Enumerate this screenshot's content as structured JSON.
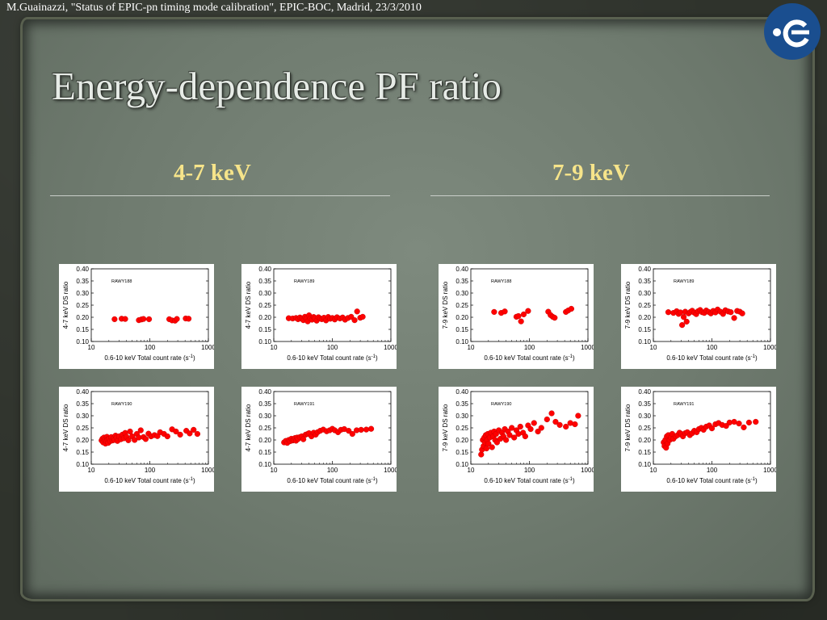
{
  "header": {
    "citation": "M.Guainazzi, \"Status of EPIC-pn timing mode calibration\", EPIC-BOC, Madrid, 23/3/2010",
    "title": "Energy-dependence PF ratio"
  },
  "columns": [
    {
      "label": "4-7 keV"
    },
    {
      "label": "7-9 keV"
    }
  ],
  "logo": {
    "name": "esa-logo",
    "color": "#1a4e8f"
  },
  "colors": {
    "marker": "#ff0000",
    "heading": "#f6e48a",
    "title": "#e6ebe6"
  },
  "chart_data": [
    {
      "type": "scatter",
      "panel_label": "RAWY188",
      "xlabel": "0.6-10 keV Total count rate (s",
      "xlabel_sup": "-1",
      "xlabel_end": ")",
      "ylabel": "4-7 keV DS ratio",
      "xscale": "log",
      "xlim": [
        10,
        1000
      ],
      "ylim": [
        0.1,
        0.4
      ],
      "grid": false,
      "x_ticks": [
        "10",
        "100",
        "1000"
      ],
      "y_ticks": [
        "0.10",
        "0.15",
        "0.20",
        "0.25",
        "0.30",
        "0.35",
        "0.40"
      ],
      "points": [
        [
          25,
          0.192
        ],
        [
          33,
          0.194
        ],
        [
          38,
          0.193
        ],
        [
          65,
          0.188
        ],
        [
          72,
          0.191
        ],
        [
          78,
          0.193
        ],
        [
          97,
          0.192
        ],
        [
          215,
          0.192
        ],
        [
          240,
          0.187
        ],
        [
          270,
          0.186
        ],
        [
          290,
          0.193
        ],
        [
          410,
          0.195
        ],
        [
          460,
          0.194
        ]
      ]
    },
    {
      "type": "scatter",
      "panel_label": "RAWY189",
      "xlabel": "0.6-10 keV Total count rate (s",
      "xlabel_sup": "-1",
      "xlabel_end": ")",
      "ylabel": "4-7 keV DS ratio",
      "xscale": "log",
      "xlim": [
        10,
        1000
      ],
      "ylim": [
        0.1,
        0.4
      ],
      "grid": false,
      "x_ticks": [
        "10",
        "100",
        "1000"
      ],
      "y_ticks": [
        "0.10",
        "0.15",
        "0.20",
        "0.25",
        "0.30",
        "0.35",
        "0.40"
      ],
      "points": [
        [
          18,
          0.196
        ],
        [
          21,
          0.195
        ],
        [
          24,
          0.197
        ],
        [
          26,
          0.192
        ],
        [
          28,
          0.199
        ],
        [
          30,
          0.194
        ],
        [
          32,
          0.188
        ],
        [
          34,
          0.202
        ],
        [
          36,
          0.196
        ],
        [
          38,
          0.183
        ],
        [
          40,
          0.208
        ],
        [
          42,
          0.195
        ],
        [
          45,
          0.19
        ],
        [
          48,
          0.201
        ],
        [
          50,
          0.196
        ],
        [
          54,
          0.186
        ],
        [
          58,
          0.2
        ],
        [
          62,
          0.195
        ],
        [
          66,
          0.192
        ],
        [
          72,
          0.198
        ],
        [
          78,
          0.187
        ],
        [
          85,
          0.201
        ],
        [
          92,
          0.194
        ],
        [
          100,
          0.197
        ],
        [
          110,
          0.191
        ],
        [
          120,
          0.2
        ],
        [
          135,
          0.195
        ],
        [
          150,
          0.199
        ],
        [
          165,
          0.19
        ],
        [
          185,
          0.197
        ],
        [
          210,
          0.202
        ],
        [
          240,
          0.188
        ],
        [
          265,
          0.224
        ],
        [
          300,
          0.198
        ],
        [
          330,
          0.202
        ]
      ]
    },
    {
      "type": "scatter",
      "panel_label": "RAWY188",
      "xlabel": "0.6-10 keV Total count rate (s",
      "xlabel_sup": "-1",
      "xlabel_end": ")",
      "ylabel": "7-9 keV DS ratio",
      "xscale": "log",
      "xlim": [
        10,
        1000
      ],
      "ylim": [
        0.1,
        0.4
      ],
      "grid": false,
      "x_ticks": [
        "10",
        "100",
        "1000"
      ],
      "y_ticks": [
        "0.10",
        "0.15",
        "0.20",
        "0.25",
        "0.30",
        "0.35",
        "0.40"
      ],
      "points": [
        [
          25,
          0.222
        ],
        [
          33,
          0.218
        ],
        [
          38,
          0.224
        ],
        [
          60,
          0.202
        ],
        [
          65,
          0.205
        ],
        [
          72,
          0.183
        ],
        [
          80,
          0.212
        ],
        [
          95,
          0.226
        ],
        [
          210,
          0.223
        ],
        [
          230,
          0.209
        ],
        [
          250,
          0.202
        ],
        [
          270,
          0.198
        ],
        [
          420,
          0.222
        ],
        [
          460,
          0.228
        ],
        [
          520,
          0.235
        ]
      ]
    },
    {
      "type": "scatter",
      "panel_label": "RAWY189",
      "xlabel": "0.6-10 keV Total count rate (s",
      "xlabel_sup": "-1",
      "xlabel_end": ")",
      "ylabel": "7-9 keV DS ratio",
      "xscale": "log",
      "xlim": [
        10,
        1000
      ],
      "ylim": [
        0.1,
        0.4
      ],
      "grid": false,
      "x_ticks": [
        "10",
        "100",
        "1000"
      ],
      "y_ticks": [
        "0.10",
        "0.15",
        "0.20",
        "0.25",
        "0.30",
        "0.35",
        "0.40"
      ],
      "points": [
        [
          18,
          0.221
        ],
        [
          22,
          0.218
        ],
        [
          25,
          0.225
        ],
        [
          27,
          0.214
        ],
        [
          29,
          0.22
        ],
        [
          31,
          0.168
        ],
        [
          33,
          0.201
        ],
        [
          35,
          0.223
        ],
        [
          37,
          0.182
        ],
        [
          40,
          0.216
        ],
        [
          43,
          0.222
        ],
        [
          46,
          0.227
        ],
        [
          50,
          0.219
        ],
        [
          54,
          0.213
        ],
        [
          58,
          0.225
        ],
        [
          63,
          0.23
        ],
        [
          68,
          0.221
        ],
        [
          74,
          0.218
        ],
        [
          80,
          0.228
        ],
        [
          88,
          0.222
        ],
        [
          96,
          0.216
        ],
        [
          105,
          0.226
        ],
        [
          115,
          0.22
        ],
        [
          125,
          0.232
        ],
        [
          140,
          0.223
        ],
        [
          155,
          0.214
        ],
        [
          170,
          0.229
        ],
        [
          190,
          0.224
        ],
        [
          210,
          0.221
        ],
        [
          240,
          0.197
        ],
        [
          270,
          0.226
        ],
        [
          300,
          0.223
        ],
        [
          330,
          0.216
        ]
      ]
    },
    {
      "type": "scatter",
      "panel_label": "RAWY190",
      "xlabel": "0.6-10 keV Total count rate (s",
      "xlabel_sup": "-1",
      "xlabel_end": ")",
      "ylabel": "4-7 keV DS ratio",
      "xscale": "log",
      "xlim": [
        10,
        1000
      ],
      "ylim": [
        0.1,
        0.4
      ],
      "grid": false,
      "x_ticks": [
        "10",
        "100",
        "1000"
      ],
      "y_ticks": [
        "0.10",
        "0.15",
        "0.20",
        "0.25",
        "0.30",
        "0.35",
        "0.40"
      ],
      "points": [
        [
          15,
          0.198
        ],
        [
          15.5,
          0.205
        ],
        [
          16,
          0.19
        ],
        [
          16.5,
          0.21
        ],
        [
          17,
          0.2
        ],
        [
          17.5,
          0.185
        ],
        [
          18,
          0.196
        ],
        [
          18.5,
          0.213
        ],
        [
          19,
          0.202
        ],
        [
          19.5,
          0.188
        ],
        [
          20,
          0.205
        ],
        [
          21,
          0.195
        ],
        [
          22,
          0.212
        ],
        [
          23,
          0.198
        ],
        [
          24,
          0.206
        ],
        [
          25,
          0.2
        ],
        [
          26,
          0.218
        ],
        [
          27,
          0.21
        ],
        [
          28,
          0.196
        ],
        [
          30,
          0.215
        ],
        [
          32,
          0.203
        ],
        [
          34,
          0.222
        ],
        [
          36,
          0.207
        ],
        [
          38,
          0.229
        ],
        [
          40,
          0.213
        ],
        [
          43,
          0.199
        ],
        [
          46,
          0.235
        ],
        [
          50,
          0.215
        ],
        [
          55,
          0.2
        ],
        [
          60,
          0.225
        ],
        [
          65,
          0.21
        ],
        [
          70,
          0.24
        ],
        [
          78,
          0.212
        ],
        [
          85,
          0.204
        ],
        [
          95,
          0.226
        ],
        [
          105,
          0.215
        ],
        [
          120,
          0.22
        ],
        [
          135,
          0.216
        ],
        [
          150,
          0.232
        ],
        [
          175,
          0.225
        ],
        [
          200,
          0.215
        ],
        [
          240,
          0.244
        ],
        [
          280,
          0.235
        ],
        [
          330,
          0.222
        ],
        [
          420,
          0.238
        ],
        [
          480,
          0.227
        ],
        [
          560,
          0.242
        ],
        [
          650,
          0.225
        ]
      ]
    },
    {
      "type": "scatter",
      "panel_label": "RAWY191",
      "xlabel": "0.6-10 keV Total count rate (s",
      "xlabel_sup": "-1",
      "xlabel_end": ")",
      "ylabel": "4-7 keV DS ratio",
      "xscale": "log",
      "xlim": [
        10,
        1000
      ],
      "ylim": [
        0.1,
        0.4
      ],
      "grid": false,
      "x_ticks": [
        "10",
        "100",
        "1000"
      ],
      "y_ticks": [
        "0.10",
        "0.15",
        "0.20",
        "0.25",
        "0.30",
        "0.35",
        "0.40"
      ],
      "points": [
        [
          15,
          0.19
        ],
        [
          16,
          0.196
        ],
        [
          17,
          0.188
        ],
        [
          18,
          0.2
        ],
        [
          19,
          0.195
        ],
        [
          20,
          0.205
        ],
        [
          21,
          0.198
        ],
        [
          22,
          0.2
        ],
        [
          23,
          0.208
        ],
        [
          24,
          0.197
        ],
        [
          25,
          0.21
        ],
        [
          26,
          0.204
        ],
        [
          28,
          0.212
        ],
        [
          30,
          0.215
        ],
        [
          32,
          0.203
        ],
        [
          35,
          0.222
        ],
        [
          38,
          0.225
        ],
        [
          40,
          0.228
        ],
        [
          44,
          0.215
        ],
        [
          48,
          0.23
        ],
        [
          52,
          0.222
        ],
        [
          56,
          0.232
        ],
        [
          62,
          0.238
        ],
        [
          70,
          0.243
        ],
        [
          80,
          0.236
        ],
        [
          90,
          0.24
        ],
        [
          100,
          0.246
        ],
        [
          110,
          0.24
        ],
        [
          125,
          0.232
        ],
        [
          140,
          0.242
        ],
        [
          160,
          0.245
        ],
        [
          190,
          0.238
        ],
        [
          220,
          0.225
        ],
        [
          260,
          0.24
        ],
        [
          310,
          0.242
        ],
        [
          380,
          0.243
        ],
        [
          460,
          0.246
        ]
      ]
    },
    {
      "type": "scatter",
      "panel_label": "RAWY190",
      "xlabel": "0.6-10 keV Total count rate (s",
      "xlabel_sup": "-1",
      "xlabel_end": ")",
      "ylabel": "7-9 keV DS ratio",
      "xscale": "log",
      "xlim": [
        10,
        1000
      ],
      "ylim": [
        0.1,
        0.4
      ],
      "grid": false,
      "x_ticks": [
        "10",
        "100",
        "1000"
      ],
      "y_ticks": [
        "0.10",
        "0.15",
        "0.20",
        "0.25",
        "0.30",
        "0.35",
        "0.40"
      ],
      "points": [
        [
          15,
          0.14
        ],
        [
          15.5,
          0.16
        ],
        [
          16,
          0.2
        ],
        [
          16.5,
          0.175
        ],
        [
          17,
          0.21
        ],
        [
          17.5,
          0.19
        ],
        [
          18,
          0.22
        ],
        [
          18.5,
          0.165
        ],
        [
          19,
          0.2
        ],
        [
          19.5,
          0.225
        ],
        [
          20,
          0.185
        ],
        [
          21,
          0.21
        ],
        [
          22,
          0.23
        ],
        [
          23,
          0.17
        ],
        [
          24,
          0.215
        ],
        [
          25,
          0.235
        ],
        [
          26,
          0.2
        ],
        [
          27,
          0.225
        ],
        [
          28,
          0.19
        ],
        [
          30,
          0.24
        ],
        [
          32,
          0.205
        ],
        [
          34,
          0.23
        ],
        [
          36,
          0.215
        ],
        [
          38,
          0.245
        ],
        [
          40,
          0.2
        ],
        [
          43,
          0.235
        ],
        [
          46,
          0.22
        ],
        [
          50,
          0.25
        ],
        [
          55,
          0.21
        ],
        [
          60,
          0.24
        ],
        [
          65,
          0.225
        ],
        [
          70,
          0.255
        ],
        [
          78,
          0.23
        ],
        [
          85,
          0.215
        ],
        [
          95,
          0.26
        ],
        [
          105,
          0.245
        ],
        [
          120,
          0.27
        ],
        [
          140,
          0.235
        ],
        [
          160,
          0.25
        ],
        [
          200,
          0.285
        ],
        [
          240,
          0.31
        ],
        [
          280,
          0.275
        ],
        [
          330,
          0.262
        ],
        [
          420,
          0.255
        ],
        [
          500,
          0.27
        ],
        [
          600,
          0.265
        ],
        [
          680,
          0.3
        ]
      ]
    },
    {
      "type": "scatter",
      "panel_label": "RAWY191",
      "xlabel": "0.6-10 keV Total count rate (s",
      "xlabel_sup": "-1",
      "xlabel_end": ")",
      "ylabel": "7-9 keV DS ratio",
      "xscale": "log",
      "xlim": [
        10,
        1000
      ],
      "ylim": [
        0.1,
        0.4
      ],
      "grid": false,
      "x_ticks": [
        "10",
        "100",
        "1000"
      ],
      "y_ticks": [
        "0.10",
        "0.15",
        "0.20",
        "0.25",
        "0.30",
        "0.35",
        "0.40"
      ],
      "points": [
        [
          15,
          0.19
        ],
        [
          15.5,
          0.175
        ],
        [
          16,
          0.2
        ],
        [
          16.5,
          0.168
        ],
        [
          17,
          0.215
        ],
        [
          17.5,
          0.185
        ],
        [
          18,
          0.22
        ],
        [
          19,
          0.2
        ],
        [
          20,
          0.21
        ],
        [
          21,
          0.225
        ],
        [
          22,
          0.205
        ],
        [
          24,
          0.215
        ],
        [
          26,
          0.22
        ],
        [
          28,
          0.23
        ],
        [
          30,
          0.225
        ],
        [
          32,
          0.215
        ],
        [
          35,
          0.228
        ],
        [
          38,
          0.232
        ],
        [
          42,
          0.22
        ],
        [
          46,
          0.228
        ],
        [
          50,
          0.238
        ],
        [
          55,
          0.232
        ],
        [
          60,
          0.245
        ],
        [
          66,
          0.25
        ],
        [
          72,
          0.242
        ],
        [
          80,
          0.255
        ],
        [
          90,
          0.26
        ],
        [
          100,
          0.248
        ],
        [
          115,
          0.265
        ],
        [
          130,
          0.27
        ],
        [
          150,
          0.262
        ],
        [
          175,
          0.258
        ],
        [
          200,
          0.272
        ],
        [
          240,
          0.275
        ],
        [
          290,
          0.268
        ],
        [
          350,
          0.252
        ],
        [
          430,
          0.272
        ],
        [
          560,
          0.275
        ]
      ]
    }
  ]
}
